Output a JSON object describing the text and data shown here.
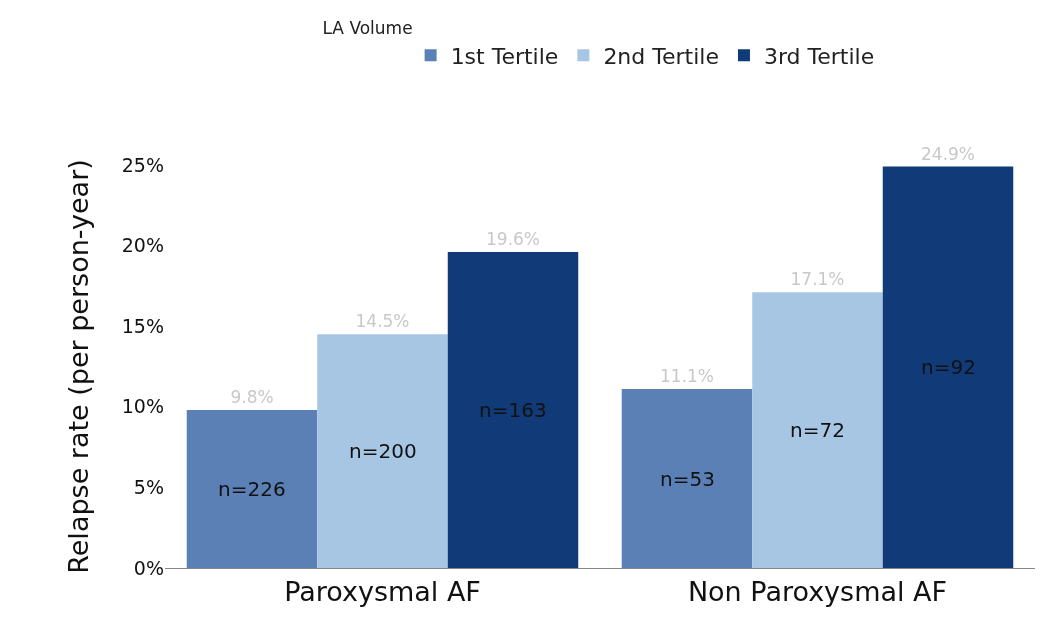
{
  "chart_data": {
    "type": "bar",
    "ylabel": "Relapse rate (per person-year)",
    "legend_title": "LA Volume",
    "legend": "top",
    "categories": [
      "Paroxysmal AF",
      "Non Paroxysmal AF"
    ],
    "series": [
      {
        "name": "1st Tertile",
        "color": "#5b80b6",
        "values": [
          9.8,
          11.1
        ],
        "value_labels": [
          "9.8%",
          "11.1%"
        ]
      },
      {
        "name": "2nd Tertile",
        "color": "#a7c6e4",
        "values": [
          14.5,
          17.1
        ],
        "value_labels": [
          "14.5%",
          "17.1%"
        ]
      },
      {
        "name": "3rd Tertile",
        "color": "#113b78",
        "values": [
          19.6,
          24.9
        ],
        "value_labels": [
          "19.6%",
          "24.9%"
        ]
      }
    ],
    "ylim": [
      0,
      25
    ],
    "yticks": [
      {
        "value": 0,
        "label": "0%"
      },
      {
        "value": 5,
        "label": "5%"
      },
      {
        "value": 10,
        "label": "10%"
      },
      {
        "value": 15,
        "label": "15%"
      },
      {
        "value": 20,
        "label": "20%"
      },
      {
        "value": 25,
        "label": "25%"
      }
    ],
    "annotations": [
      "n=226",
      "n=200",
      "n=163",
      "n=53",
      "n=72",
      "n=92"
    ]
  }
}
